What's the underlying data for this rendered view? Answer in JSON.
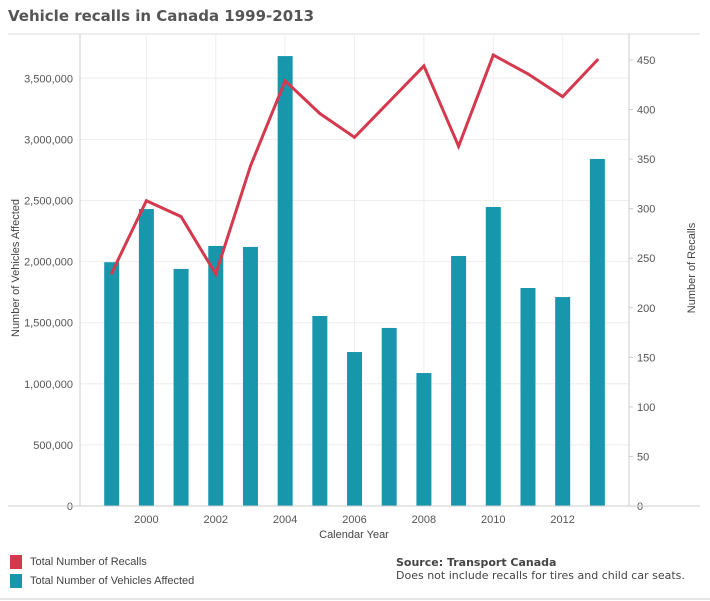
{
  "title": "Vehicle recalls in Canada 1999-2013",
  "chart_data": {
    "type": "bar+line",
    "title": "Vehicle recalls in Canada 1999-2013",
    "xlabel": "Calendar Year",
    "ylabel_left": "Number of Vehicles Affected",
    "ylabel_right": "Number of Recalls",
    "x": [
      1999,
      2000,
      2001,
      2002,
      2003,
      2004,
      2005,
      2006,
      2007,
      2008,
      2009,
      2010,
      2011,
      2012,
      2013
    ],
    "x_tick_labels": [
      "2000",
      "2002",
      "2004",
      "2006",
      "2008",
      "2010",
      "2012"
    ],
    "y_left_ticks": [
      "0",
      "500,000",
      "1,000,000",
      "1,500,000",
      "2,000,000",
      "2,500,000",
      "3,000,000",
      "3,500,000"
    ],
    "y_right_ticks": [
      "0",
      "50",
      "100",
      "150",
      "200",
      "250",
      "300",
      "350",
      "400",
      "450"
    ],
    "ylim_left": [
      0,
      3850000
    ],
    "ylim_right": [
      0,
      475
    ],
    "grid": true,
    "legend_position": "bottom-left",
    "series": [
      {
        "name": "Total Number of Vehicles Affected",
        "type": "bar",
        "axis": "left",
        "color": "#1896ab",
        "values": [
          1995000,
          2430000,
          1940000,
          2128000,
          2120000,
          3682000,
          1555000,
          1260000,
          1457000,
          1088000,
          2046000,
          2447000,
          1784000,
          1710000,
          2840000
        ]
      },
      {
        "name": "Total Number of Recalls",
        "type": "line",
        "axis": "right",
        "color": "#d5394e",
        "values": [
          235,
          308,
          292,
          234,
          343,
          429,
          396,
          372,
          408,
          444,
          363,
          455,
          436,
          413,
          450
        ]
      }
    ]
  },
  "legend": [
    {
      "label": "Total Number of Recalls",
      "color": "#d5394e"
    },
    {
      "label": "Total Number of Vehicles Affected",
      "color": "#1896ab"
    }
  ],
  "source": {
    "title": "Source: Transport Canada",
    "note": "Does not include recalls for tires and child car seats."
  }
}
